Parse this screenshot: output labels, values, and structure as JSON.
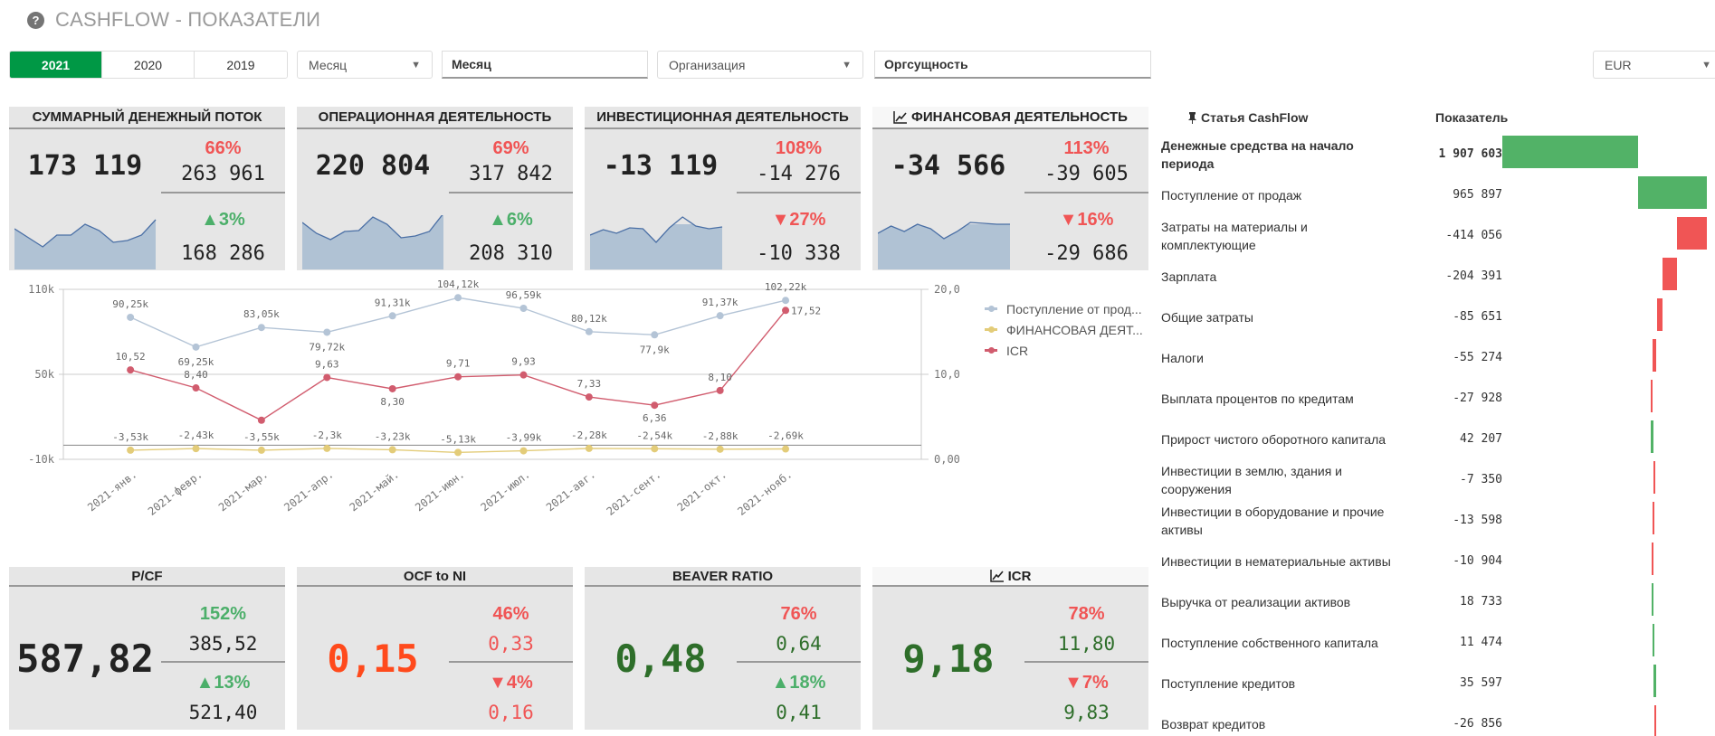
{
  "header": {
    "title": "CASHFLOW - ПОКАЗАТЕЛИ",
    "help_icon": "?"
  },
  "filters": {
    "years": [
      {
        "label": "2021",
        "active": true
      },
      {
        "label": "2020",
        "active": false
      },
      {
        "label": "2019",
        "active": false
      }
    ],
    "period_dropdown": "Месяц",
    "period_field": "Месяц",
    "org_dropdown": "Организация",
    "org_field": "Оргсущность",
    "currency": "EUR",
    "arrow": "▼"
  },
  "kpis_top": [
    {
      "title": "СУММАРНЫЙ ДЕНЕЖНЫЙ ПОТОК",
      "value": "173 119",
      "pct1": "66%",
      "pct1_color": "red",
      "val1": "263 961",
      "pct2": "▲3%",
      "pct2_color": "green",
      "val2": "168 286",
      "spark": [
        45,
        35,
        25,
        38,
        38,
        50,
        43,
        30,
        32,
        38,
        55
      ],
      "has_chart_icon": false
    },
    {
      "title": "ОПЕРАЦИОННАЯ ДЕЯТЕЛЬНОСТЬ",
      "value": "220 804",
      "pct1": "69%",
      "pct1_color": "red",
      "val1": "317 842",
      "pct2": "▲6%",
      "pct2_color": "green",
      "val2": "208 310",
      "spark": [
        52,
        40,
        33,
        42,
        43,
        58,
        50,
        35,
        37,
        42,
        62
      ],
      "has_chart_icon": false
    },
    {
      "title": "ИНВЕСТИЦИОННАЯ ДЕЯТЕЛЬНОСТЬ",
      "value": "-13 119",
      "pct1": "108%",
      "pct1_color": "red",
      "val1": "-14 276",
      "pct2": "▼27%",
      "pct2_color": "red",
      "val2": "-10 338",
      "spark": [
        38,
        44,
        40,
        46,
        45,
        30,
        46,
        58,
        48,
        45,
        47
      ],
      "has_chart_icon": false
    },
    {
      "title": "ФИНАНСОВАЯ ДЕЯТЕЛЬНОСТЬ",
      "value": "-34 566",
      "pct1": "113%",
      "pct1_color": "red",
      "val1": "-39 605",
      "pct2": "▼16%",
      "pct2_color": "red",
      "val2": "-29 686",
      "spark": [
        40,
        48,
        42,
        50,
        45,
        34,
        42,
        52,
        51,
        50,
        50
      ],
      "has_chart_icon": true
    }
  ],
  "chart_data": {
    "type": "line",
    "x": [
      "2021-янв.",
      "2021-февр.",
      "2021-мар.",
      "2021-апр.",
      "2021-май.",
      "2021-июн.",
      "2021-июл.",
      "2021-авг.",
      "2021-сент.",
      "2021-окт.",
      "2021-нояб."
    ],
    "series": [
      {
        "name": "Поступление от прод...",
        "axis": "left",
        "color": "#b4c4d6",
        "values": [
          90250,
          69250,
          83050,
          79720,
          91310,
          104120,
          96590,
          80120,
          77900,
          91370,
          102220
        ],
        "labels": [
          "90,25k",
          "69,25k",
          "83,05k",
          "79,72k",
          "91,31k",
          "104,12k",
          "96,59k",
          "80,12k",
          "77,9k",
          "91,37k",
          "102,22k"
        ]
      },
      {
        "name": "ФИНАНСОВАЯ ДЕЯТ...",
        "axis": "left",
        "color": "#e3cc79",
        "values": [
          -3530,
          -2430,
          -3550,
          -2300,
          -3230,
          -5130,
          -3990,
          -2280,
          -2540,
          -2880,
          -2690
        ],
        "labels": [
          "-3,53k",
          "-2,43k",
          "-3,55k",
          "-2,3k",
          "-3,23k",
          "-5,13k",
          "-3,99k",
          "-2,28k",
          "-2,54k",
          "-2,88k",
          "-2,69k"
        ]
      },
      {
        "name": "ICR",
        "axis": "right",
        "color": "#d15c6e",
        "values": [
          10.52,
          8.4,
          4.6,
          9.63,
          8.3,
          9.71,
          9.93,
          7.33,
          6.36,
          8.1,
          17.52
        ],
        "labels": [
          "10,52",
          "8,40",
          "",
          "9,63",
          "8,30",
          "9,71",
          "9,93",
          "7,33",
          "6,36",
          "8,10",
          "17,52"
        ]
      }
    ],
    "y_left": {
      "range": [
        -10000,
        110000
      ],
      "ticks": [
        {
          "v": 110000,
          "label": "110k"
        },
        {
          "v": 50000,
          "label": "50k"
        },
        {
          "v": -10000,
          "label": "-10k"
        }
      ]
    },
    "y_right": {
      "range": [
        0,
        20
      ],
      "ticks": [
        {
          "v": 20,
          "label": "20,00"
        },
        {
          "v": 10,
          "label": "10,00"
        },
        {
          "v": 0,
          "label": "0,00"
        }
      ]
    },
    "legend_position": "right",
    "grid": true
  },
  "kpis_bottom": [
    {
      "title": "P/CF",
      "value": "587,82",
      "value_color": "#222222",
      "pct1": "152%",
      "pct1_color": "green",
      "val1": "385,52",
      "val_color": "#222222",
      "pct2": "▲13%",
      "pct2_color": "green",
      "val2": "521,40",
      "has_chart_icon": false
    },
    {
      "title": "OCF to NI",
      "value": "0,15",
      "value_color": "#ff4a1c",
      "pct1": "46%",
      "pct1_color": "red",
      "val1": "0,33",
      "val_color": "#f05555",
      "pct2": "▼4%",
      "pct2_color": "red",
      "val2": "0,16",
      "has_chart_icon": false
    },
    {
      "title": "BEAVER RATIO",
      "value": "0,48",
      "value_color": "#2e6e2a",
      "pct1": "76%",
      "pct1_color": "red",
      "val1": "0,64",
      "val_color": "#2e6e2a",
      "pct2": "▲18%",
      "pct2_color": "green",
      "val2": "0,41",
      "has_chart_icon": false
    },
    {
      "title": "ICR",
      "value": "9,18",
      "value_color": "#2e6e2a",
      "pct1": "78%",
      "pct1_color": "red",
      "val1": "11,80",
      "val_color": "#2e6e2a",
      "pct2": "▼7%",
      "pct2_color": "red",
      "val2": "9,83",
      "has_chart_icon": true
    }
  ],
  "cashflow_table": {
    "col1": "Статья CashFlow",
    "col2": "Показатель",
    "rows": [
      {
        "label": "Денежные средства на начало периода",
        "value": "1 907 603",
        "amount": 1907603,
        "bold": true
      },
      {
        "label": "Поступление от продаж",
        "value": "965 897",
        "amount": 965897
      },
      {
        "label": "Затраты на материалы и комплектующие",
        "value": "-414 056",
        "amount": -414056
      },
      {
        "label": "Зарплата",
        "value": "-204 391",
        "amount": -204391
      },
      {
        "label": "Общие затраты",
        "value": "-85 651",
        "amount": -85651
      },
      {
        "label": "Налоги",
        "value": "-55 274",
        "amount": -55274
      },
      {
        "label": "Выплата процентов по кредитам",
        "value": "-27 928",
        "amount": -27928
      },
      {
        "label": "Прирост чистого оборотного капитала",
        "value": "42 207",
        "amount": 42207
      },
      {
        "label": "Инвестиции в землю, здания и сооружения",
        "value": "-7 350",
        "amount": -7350
      },
      {
        "label": "Инвестиции в оборудование и прочие активы",
        "value": "-13 598",
        "amount": -13598
      },
      {
        "label": "Инвестиции в нематериальные активы",
        "value": "-10 904",
        "amount": -10904
      },
      {
        "label": "Выручка от реализации активов",
        "value": "18 733",
        "amount": 18733
      },
      {
        "label": "Поступление собственного капитала",
        "value": "11 474",
        "amount": 11474
      },
      {
        "label": "Поступление кредитов",
        "value": "35 597",
        "amount": 35597
      },
      {
        "label": "Возврат кредитов",
        "value": "-26 856",
        "amount": -26856
      }
    ]
  },
  "colors": {
    "accent": "#009845",
    "green": "#4caf6a",
    "red": "#f05555",
    "bar_green": "#52b267",
    "bar_red": "#f05555",
    "spark_fill": "#b0c2d4",
    "spark_line": "#4a6fa5"
  }
}
